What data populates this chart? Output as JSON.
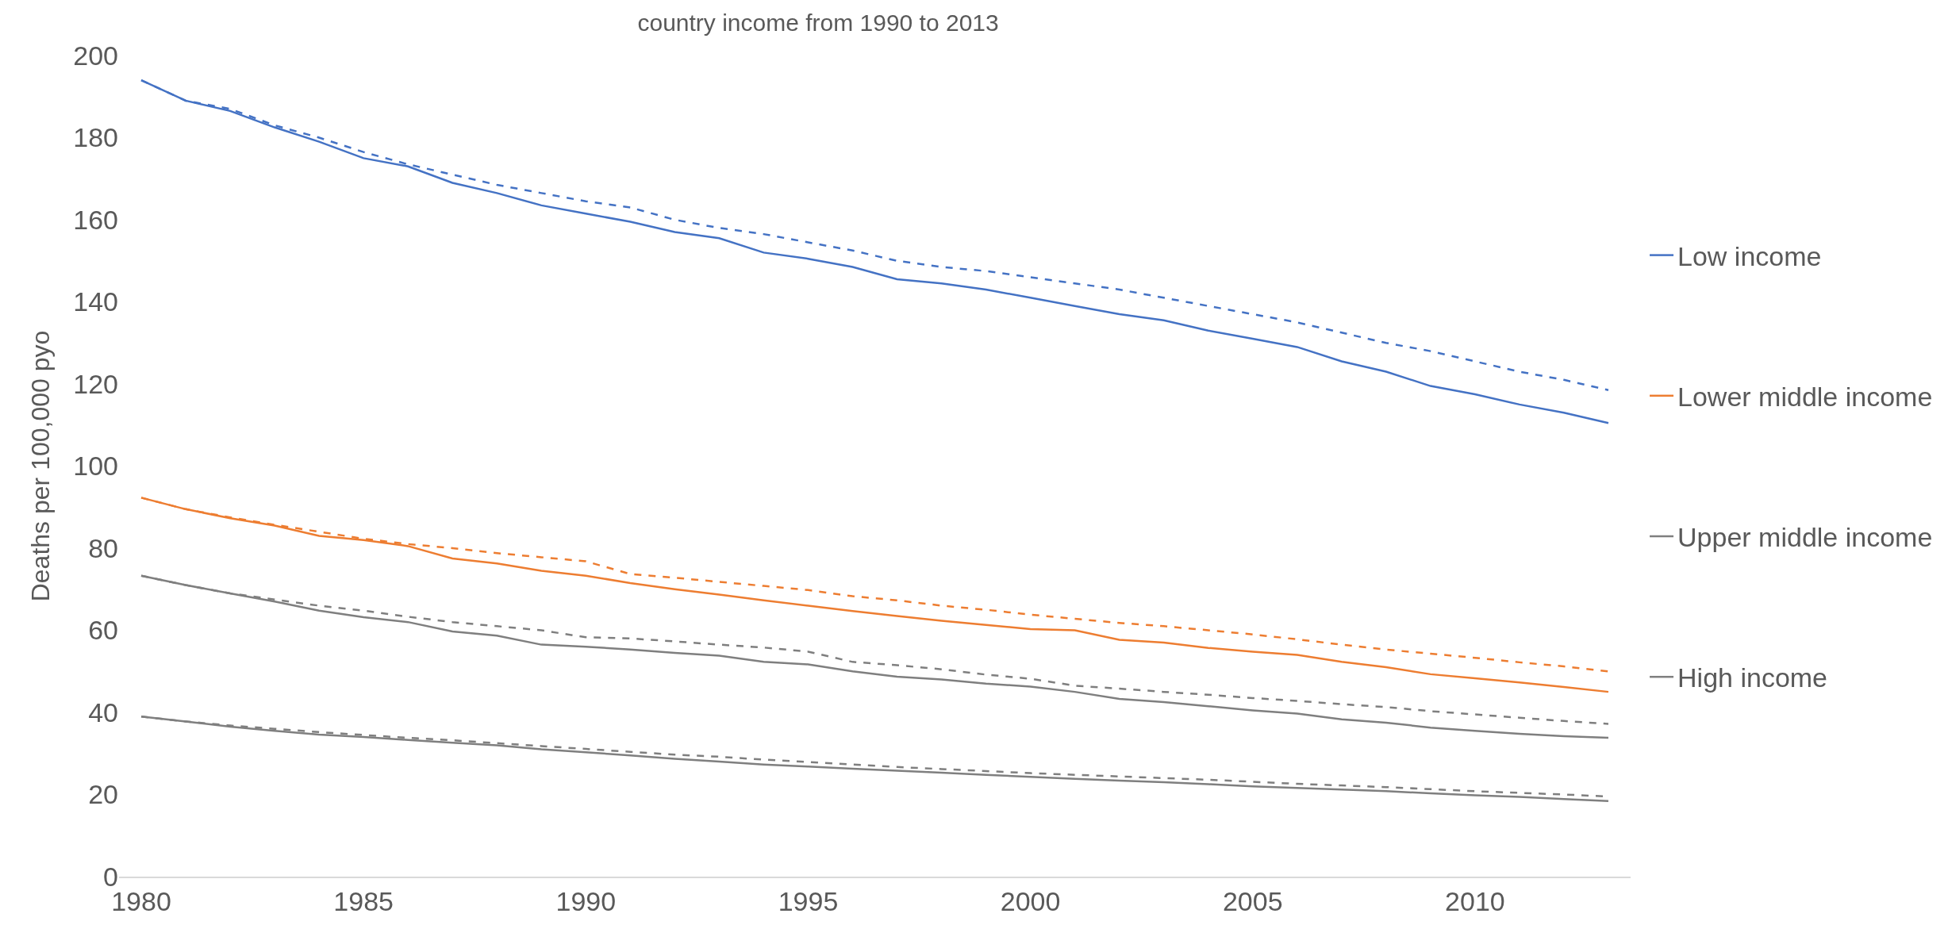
{
  "chart_data": {
    "type": "line",
    "title": "country income from 1990 to 2013",
    "ylabel": "Deaths per 100,000 pyo",
    "x": [
      1980,
      1981,
      1982,
      1983,
      1984,
      1985,
      1986,
      1987,
      1988,
      1989,
      1990,
      1991,
      1992,
      1993,
      1994,
      1995,
      1996,
      1997,
      1998,
      1999,
      2000,
      2001,
      2002,
      2003,
      2004,
      2005,
      2006,
      2007,
      2008,
      2009,
      2010,
      2011,
      2012,
      2013
    ],
    "xlim": [
      1979.5,
      2013.5
    ],
    "xticks": [
      1980,
      1985,
      1990,
      1995,
      2000,
      2005,
      2010
    ],
    "ylim": [
      0,
      200
    ],
    "yticks": [
      0,
      20,
      40,
      60,
      80,
      100,
      120,
      140,
      160,
      180,
      200
    ],
    "grid": false,
    "legend": "right",
    "marker": "none",
    "series": [
      {
        "name": "Low income",
        "color": "#4472c4",
        "line_style": "solid",
        "values": [
          194,
          189,
          186.5,
          182.5,
          179,
          175,
          173,
          169,
          166.5,
          163.5,
          161.5,
          159.5,
          157,
          155.5,
          152,
          150.5,
          148.5,
          145.5,
          144.5,
          143,
          141,
          139,
          137,
          135.5,
          133,
          131,
          129,
          125.5,
          123,
          119.5,
          117.5,
          115,
          113,
          110.5
        ]
      },
      {
        "color": "#4472c4",
        "line_style": "dashed",
        "values": [
          194,
          189,
          187,
          183,
          180,
          176.5,
          173.5,
          171,
          168.5,
          166.5,
          164.5,
          163,
          160,
          158,
          156.5,
          154.5,
          152.5,
          150,
          148.5,
          147.5,
          146,
          144.5,
          143,
          141,
          139,
          137,
          135,
          132.5,
          130,
          128,
          125.5,
          123,
          121,
          118.5
        ]
      },
      {
        "name": "Lower middle income",
        "color": "#ed7d31",
        "line_style": "solid",
        "values": [
          92.3,
          89.5,
          87.3,
          85.5,
          83,
          82,
          80.5,
          77.5,
          76.3,
          74.5,
          73.3,
          71.5,
          70,
          68.7,
          67.3,
          66,
          64.7,
          63.5,
          62.3,
          61.3,
          60.3,
          60,
          57.7,
          57,
          55.7,
          54.8,
          54,
          52.3,
          51,
          49.3,
          48.3,
          47.3,
          46.2,
          45
        ]
      },
      {
        "color": "#ed7d31",
        "line_style": "dashed",
        "values": [
          92.3,
          89.5,
          87.5,
          85.7,
          84,
          82.3,
          81,
          80,
          78.8,
          77.8,
          76.8,
          73.7,
          72.8,
          71.8,
          70.8,
          69.8,
          68.3,
          67.3,
          66,
          65,
          63.8,
          62.8,
          61.8,
          61,
          60,
          59,
          57.8,
          56.5,
          55.3,
          54.3,
          53.3,
          52.2,
          51.2,
          50
        ]
      },
      {
        "name": "Upper middle income",
        "color": "#7f7f7f",
        "line_style": "solid",
        "values": [
          73.3,
          71,
          69,
          67,
          64.8,
          63.2,
          62,
          59.7,
          58.7,
          56.5,
          56,
          55.3,
          54.5,
          53.8,
          52.3,
          51.7,
          50,
          48.7,
          48,
          47,
          46.3,
          45,
          43.3,
          42.5,
          41.5,
          40.5,
          39.7,
          38.3,
          37.5,
          36.3,
          35.5,
          34.8,
          34.2,
          33.8
        ]
      },
      {
        "color": "#7f7f7f",
        "line_style": "dashed",
        "values": [
          73.3,
          71,
          69,
          67.5,
          66,
          64.8,
          63.3,
          62,
          61,
          60,
          58.3,
          58,
          57.3,
          56.5,
          55.8,
          54.8,
          52.3,
          51.5,
          50.5,
          49.2,
          48.2,
          46.5,
          45.8,
          45,
          44.3,
          43.5,
          42.8,
          42,
          41.3,
          40.3,
          39.5,
          38.7,
          37.9,
          37.2
        ]
      },
      {
        "name": "High income",
        "color": "#7f7f7f",
        "line_style": "solid",
        "values": [
          39,
          37.8,
          36.5,
          35.5,
          34.6,
          34,
          33.3,
          32.6,
          32,
          31,
          30.3,
          29.5,
          28.7,
          28,
          27.3,
          26.8,
          26.3,
          25.8,
          25.3,
          24.8,
          24.3,
          23.8,
          23.4,
          23,
          22.5,
          22,
          21.6,
          21.2,
          20.8,
          20.3,
          19.8,
          19.4,
          18.9,
          18.4
        ]
      },
      {
        "color": "#7f7f7f",
        "line_style": "dashed",
        "values": [
          39,
          37.8,
          36.8,
          36,
          35.2,
          34.5,
          33.8,
          33.2,
          32.5,
          31.8,
          31.1,
          30.4,
          29.7,
          29.2,
          28.5,
          27.9,
          27.3,
          26.7,
          26.2,
          25.7,
          25.2,
          24.8,
          24.4,
          24,
          23.6,
          23.1,
          22.6,
          22.2,
          21.8,
          21.3,
          20.8,
          20.4,
          20,
          19.5
        ]
      }
    ]
  }
}
